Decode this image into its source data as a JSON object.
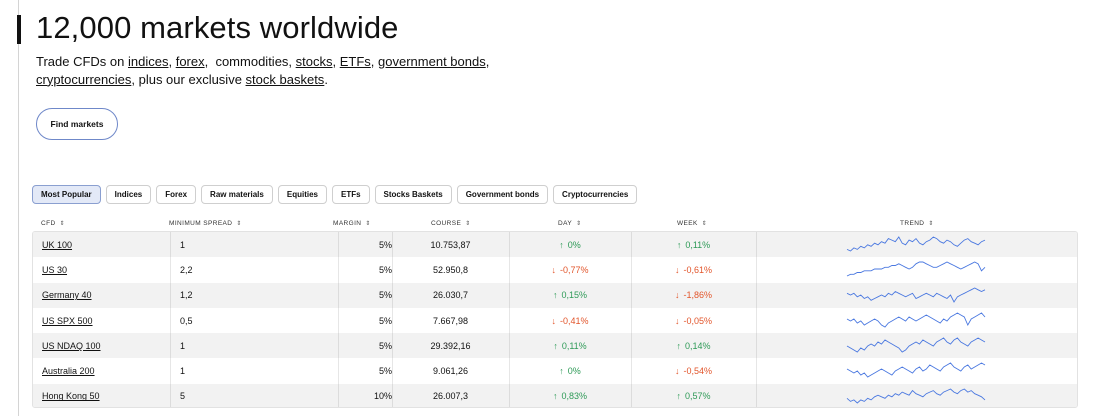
{
  "headline": "12,000 markets worldwide",
  "intro": {
    "prefix": "Trade CFDs on ",
    "links": [
      "indices",
      "forex",
      "stocks",
      "ETFs",
      "government bonds",
      "cryptocurrencies",
      "stock baskets"
    ],
    "commodities_text": "commodities, ",
    "plus_text": ", plus our exclusive ",
    "end": "."
  },
  "find_markets_label": "Find markets",
  "tabs": [
    "Most Popular",
    "Indices",
    "Forex",
    "Raw materials",
    "Equities",
    "ETFs",
    "Stocks Baskets",
    "Government bonds",
    "Cryptocurrencies"
  ],
  "active_tab": "Most Popular",
  "columns": {
    "cfd": "CFD",
    "min_spread": "MINIMUM SPREAD",
    "margin": "MARGIN",
    "course": "COURSE",
    "day": "DAY",
    "week": "WEEK",
    "trend": "TREND"
  },
  "sort_glyph": "⇕",
  "rows": [
    {
      "cfd": "UK 100",
      "spread": "1",
      "margin": "5%",
      "course": "10.753,87",
      "day": "0%",
      "day_dir": "up",
      "week": "0,11%",
      "week_dir": "up",
      "trend": [
        5,
        4,
        6,
        5,
        7,
        6,
        8,
        7,
        9,
        8,
        10,
        9,
        12,
        11,
        10,
        13,
        9,
        8,
        11,
        10,
        12,
        9,
        8,
        10,
        11,
        13,
        12,
        10,
        9,
        11,
        10,
        8,
        7,
        9,
        11,
        12,
        10,
        9,
        8,
        10,
        11
      ]
    },
    {
      "cfd": "US 30",
      "spread": "2,2",
      "margin": "5%",
      "course": "52.950,8",
      "day": "-0,77%",
      "day_dir": "down",
      "week": "-0,61%",
      "week_dir": "down",
      "trend": [
        4,
        5,
        5,
        6,
        6,
        7,
        7,
        7,
        8,
        8,
        8,
        9,
        9,
        10,
        10,
        11,
        10,
        9,
        8,
        9,
        11,
        12,
        12,
        11,
        10,
        9,
        9,
        10,
        11,
        12,
        11,
        10,
        9,
        8,
        9,
        10,
        11,
        12,
        11,
        7,
        9
      ]
    },
    {
      "cfd": "Germany 40",
      "spread": "1,2",
      "margin": "5%",
      "course": "26.030,7",
      "day": "0,15%",
      "day_dir": "up",
      "week": "-1,86%",
      "week_dir": "down",
      "trend": [
        10,
        9,
        10,
        8,
        9,
        7,
        8,
        6,
        7,
        8,
        9,
        8,
        10,
        9,
        11,
        10,
        9,
        8,
        9,
        10,
        7,
        8,
        9,
        10,
        9,
        8,
        10,
        9,
        8,
        7,
        9,
        5,
        8,
        9,
        10,
        11,
        12,
        13,
        12,
        11,
        12
      ]
    },
    {
      "cfd": "US SPX 500",
      "spread": "0,5",
      "margin": "5%",
      "course": "7.667,98",
      "day": "-0,41%",
      "day_dir": "down",
      "week": "-0,05%",
      "week_dir": "down",
      "trend": [
        9,
        8,
        9,
        7,
        8,
        6,
        7,
        8,
        9,
        8,
        6,
        5,
        7,
        8,
        9,
        10,
        9,
        8,
        10,
        9,
        8,
        9,
        10,
        11,
        10,
        9,
        8,
        7,
        9,
        8,
        10,
        11,
        12,
        11,
        10,
        6,
        9,
        10,
        11,
        12,
        10
      ]
    },
    {
      "cfd": "US NDAQ 100",
      "spread": "1",
      "margin": "5%",
      "course": "29.392,16",
      "day": "0,11%",
      "day_dir": "up",
      "week": "0,14%",
      "week_dir": "up",
      "trend": [
        8,
        7,
        6,
        5,
        7,
        6,
        8,
        9,
        8,
        10,
        9,
        11,
        10,
        9,
        8,
        7,
        5,
        6,
        8,
        9,
        10,
        9,
        11,
        10,
        9,
        8,
        10,
        11,
        12,
        10,
        9,
        11,
        12,
        10,
        9,
        8,
        10,
        11,
        12,
        11,
        10
      ]
    },
    {
      "cfd": "Australia 200",
      "spread": "1",
      "margin": "5%",
      "course": "9.061,26",
      "day": "0%",
      "day_dir": "up",
      "week": "-0,54%",
      "week_dir": "down",
      "trend": [
        9,
        8,
        7,
        8,
        6,
        7,
        5,
        6,
        7,
        8,
        9,
        8,
        7,
        6,
        8,
        9,
        10,
        9,
        8,
        7,
        9,
        10,
        8,
        9,
        11,
        10,
        9,
        8,
        10,
        11,
        12,
        10,
        9,
        8,
        10,
        11,
        9,
        10,
        11,
        12,
        11
      ]
    },
    {
      "cfd": "Hong Kong 50",
      "spread": "5",
      "margin": "10%",
      "course": "26.007,3",
      "day": "0,83%",
      "day_dir": "up",
      "week": "0,57%",
      "week_dir": "up",
      "trend": [
        7,
        5,
        6,
        4,
        6,
        5,
        7,
        6,
        8,
        9,
        8,
        7,
        9,
        8,
        10,
        9,
        11,
        10,
        9,
        12,
        10,
        9,
        8,
        10,
        11,
        12,
        10,
        9,
        11,
        12,
        13,
        11,
        10,
        12,
        13,
        11,
        12,
        10,
        9,
        8,
        6
      ]
    }
  ],
  "colors": {
    "up": "#2e9a57",
    "down": "#e2552b",
    "sparkline": "#4a78e0",
    "active_tab_bg": "#e3e9f7",
    "find_button_border": "#6f88c9"
  },
  "icons": {
    "up": "arrow-up-icon",
    "down": "arrow-down-icon"
  },
  "arrow_glyphs": {
    "up": "↑",
    "down": "↓"
  }
}
